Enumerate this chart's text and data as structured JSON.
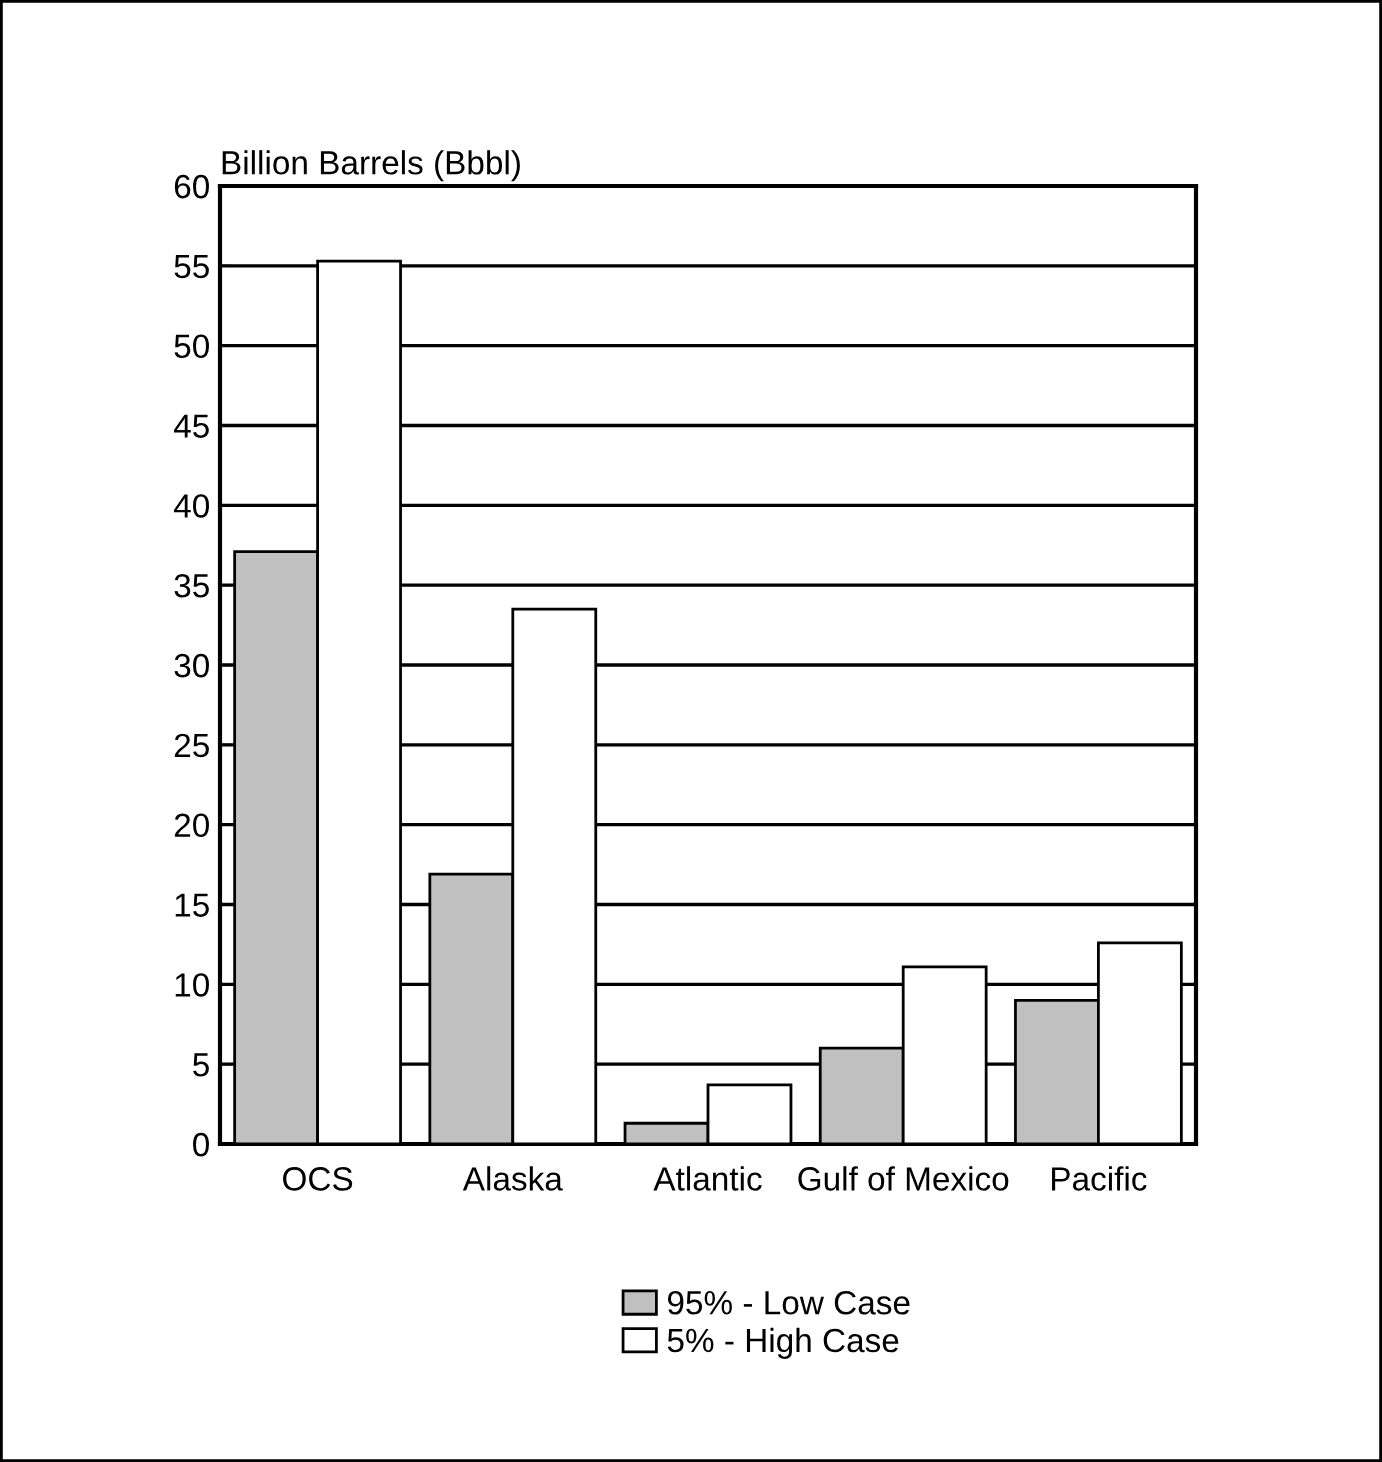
{
  "chart_data": {
    "type": "bar",
    "ylabel": "Billion Barrels (Bbbl)",
    "categories": [
      "OCS",
      "Alaska",
      "Atlantic",
      "Gulf of Mexico",
      "Pacific"
    ],
    "series": [
      {
        "name": "95% - Low Case",
        "color": "#c0c0c0",
        "values": [
          37.1,
          16.9,
          1.3,
          6.0,
          9.0
        ]
      },
      {
        "name": "5% - High Case",
        "color": "#ffffff",
        "values": [
          55.3,
          33.5,
          3.7,
          11.1,
          12.6
        ]
      }
    ],
    "ylim": [
      0,
      60
    ],
    "yticks": [
      0,
      5,
      10,
      15,
      20,
      25,
      30,
      35,
      40,
      45,
      50,
      55,
      60
    ],
    "grid": "y",
    "legend": "bottom"
  }
}
